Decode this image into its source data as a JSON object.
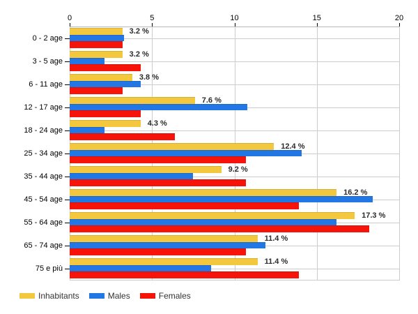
{
  "chart_data": {
    "type": "bar",
    "orientation": "horizontal",
    "title": "",
    "xlabel": "",
    "ylabel": "",
    "xlim": [
      0,
      20
    ],
    "x_ticks": [
      0,
      5,
      10,
      15,
      20
    ],
    "x_axis_position": "top",
    "grid": true,
    "legend_position": "bottom",
    "categories": [
      "0 - 2 age",
      "3 - 5 age",
      "6 - 11 age",
      "12 - 17 age",
      "18 - 24 age",
      "25 - 34 age",
      "35 - 44 age",
      "45 - 54 age",
      "55 - 64 age",
      "65 - 74 age",
      "75 e più"
    ],
    "series": [
      {
        "name": "Inhabitants",
        "color": "#F3C83E",
        "values": [
          3.2,
          3.2,
          3.8,
          7.6,
          4.3,
          12.4,
          9.2,
          16.2,
          17.3,
          11.4,
          11.4
        ],
        "data_labels": [
          "3.2 %",
          "3.2 %",
          "3.8 %",
          "7.6 %",
          "4.3 %",
          "12.4 %",
          "9.2 %",
          "16.2 %",
          "17.3 %",
          "11.4 %",
          "11.4 %"
        ]
      },
      {
        "name": "Males",
        "color": "#2277E4",
        "values": [
          3.3,
          2.1,
          4.3,
          10.8,
          2.1,
          14.1,
          7.5,
          18.4,
          16.2,
          11.9,
          8.6
        ],
        "data_labels": []
      },
      {
        "name": "Females",
        "color": "#F5130A",
        "values": [
          3.2,
          4.3,
          3.2,
          4.3,
          6.4,
          10.7,
          10.7,
          13.9,
          18.2,
          10.7,
          13.9
        ],
        "data_labels": []
      }
    ],
    "value_labels_shown_for_series": "Inhabitants"
  },
  "colors": {
    "background": "#ffffff",
    "gridline": "#cccccc",
    "axis_text": "#000000",
    "value_label_text": "#2b2b2b",
    "legend_text": "#333333"
  },
  "legend": {
    "items": [
      "Inhabitants",
      "Males",
      "Females"
    ]
  }
}
